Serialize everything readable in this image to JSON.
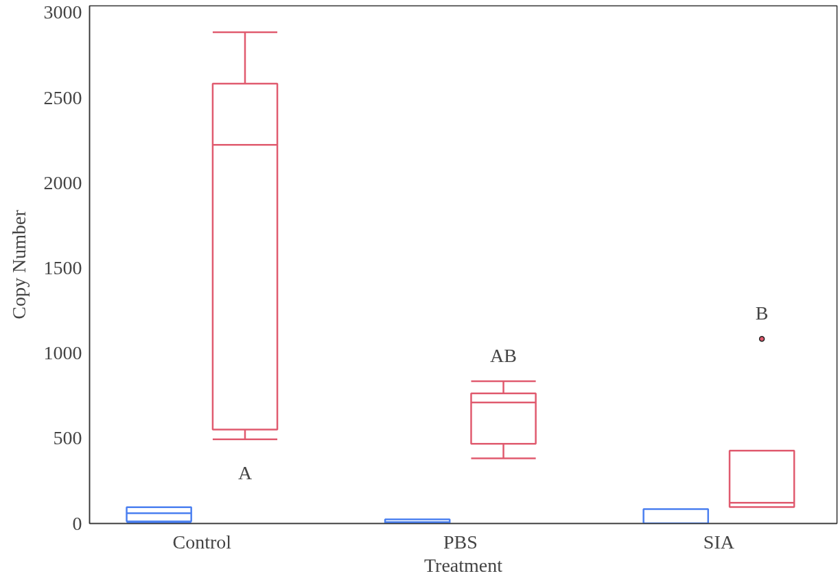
{
  "chart_data": {
    "type": "box",
    "xlabel": "Treatment",
    "ylabel": "Copy Number",
    "categories": [
      "Control",
      "PBS",
      "SIA"
    ],
    "ylim": [
      0,
      3040
    ],
    "yticks": [
      0,
      500,
      1000,
      1500,
      2000,
      2500,
      3000
    ],
    "grid": false,
    "series": [
      {
        "color": "#4a7ff0",
        "boxes": [
          {
            "low": 5,
            "q1": 12,
            "median": 60,
            "q3": 96,
            "high": 96
          },
          {
            "low": 3,
            "q1": 3,
            "median": 8,
            "q3": 24,
            "high": 24
          },
          {
            "low": 0,
            "q1": 0,
            "median": 0,
            "q3": 85,
            "high": 85
          }
        ]
      },
      {
        "color": "#e05a6e",
        "boxes": [
          {
            "low": 494,
            "q1": 552,
            "median": 2224,
            "q3": 2583,
            "high": 2885
          },
          {
            "low": 383,
            "q1": 468,
            "median": 711,
            "q3": 764,
            "high": 835
          },
          {
            "low": 97,
            "q1": 97,
            "median": 122,
            "q3": 428,
            "high": 428,
            "outliers": [
              1084
            ]
          }
        ]
      }
    ],
    "annotations": [
      "A",
      "AB",
      "B"
    ]
  }
}
